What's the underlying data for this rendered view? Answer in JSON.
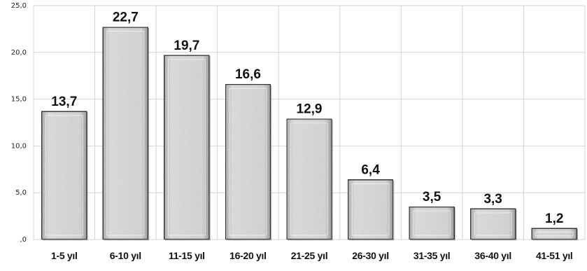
{
  "chart_data": {
    "type": "bar",
    "categories": [
      "1-5 yıl",
      "6-10 yıl",
      "11-15 yıl",
      "16-20 yıl",
      "21-25 yıl",
      "26-30 yıl",
      "31-35 yıl",
      "36-40 yıl",
      "41-51 yıl"
    ],
    "values": [
      13.7,
      22.7,
      19.7,
      16.6,
      12.9,
      6.4,
      3.5,
      3.3,
      1.2
    ],
    "data_labels": [
      "13,7",
      "22,7",
      "19,7",
      "16,6",
      "12,9",
      "6,4",
      "3,5",
      "3,3",
      "1,2"
    ],
    "yticks": [
      0,
      5,
      10,
      15,
      20,
      25
    ],
    "ytick_labels": [
      ",0",
      "5,0",
      "10,0",
      "15,0",
      "20,0",
      "25,0"
    ],
    "ylim": [
      0,
      25
    ],
    "grid": true,
    "legend": "none",
    "title": "",
    "xlabel": "",
    "ylabel": "",
    "colors": {
      "bar_fill": "#d9d9d9",
      "bar_border": "#3a3a3a",
      "grid": "#d4d4d4"
    }
  }
}
